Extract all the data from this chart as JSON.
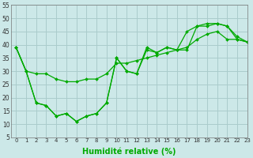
{
  "title": "",
  "xlabel": "Humidité relative (%)",
  "ylabel": "",
  "background_color": "#cce8e8",
  "grid_color": "#aacccc",
  "line_color": "#00aa00",
  "xlim": [
    -0.5,
    23
  ],
  "ylim": [
    5,
    55
  ],
  "yticks": [
    5,
    10,
    15,
    20,
    25,
    30,
    35,
    40,
    45,
    50,
    55
  ],
  "xticks": [
    0,
    1,
    2,
    3,
    4,
    5,
    6,
    7,
    8,
    9,
    10,
    11,
    12,
    13,
    14,
    15,
    16,
    17,
    18,
    19,
    20,
    21,
    22,
    23
  ],
  "series": [
    [
      39,
      30,
      18,
      17,
      13,
      14,
      11,
      13,
      14,
      18,
      35,
      30,
      29,
      39,
      37,
      39,
      38,
      38,
      47,
      47,
      48,
      47,
      42,
      41
    ],
    [
      39,
      30,
      18,
      17,
      13,
      14,
      11,
      13,
      14,
      18,
      35,
      30,
      29,
      38,
      37,
      39,
      38,
      45,
      47,
      48,
      48,
      47,
      43,
      41
    ],
    [
      39,
      30,
      29,
      29,
      27,
      26,
      26,
      27,
      27,
      29,
      33,
      33,
      34,
      35,
      36,
      37,
      38,
      39,
      42,
      44,
      45,
      42,
      42,
      41
    ]
  ],
  "xlabel_fontsize": 7,
  "ytick_fontsize": 5.5,
  "xtick_fontsize": 5.0,
  "linewidth": 0.9,
  "markersize": 2.0
}
